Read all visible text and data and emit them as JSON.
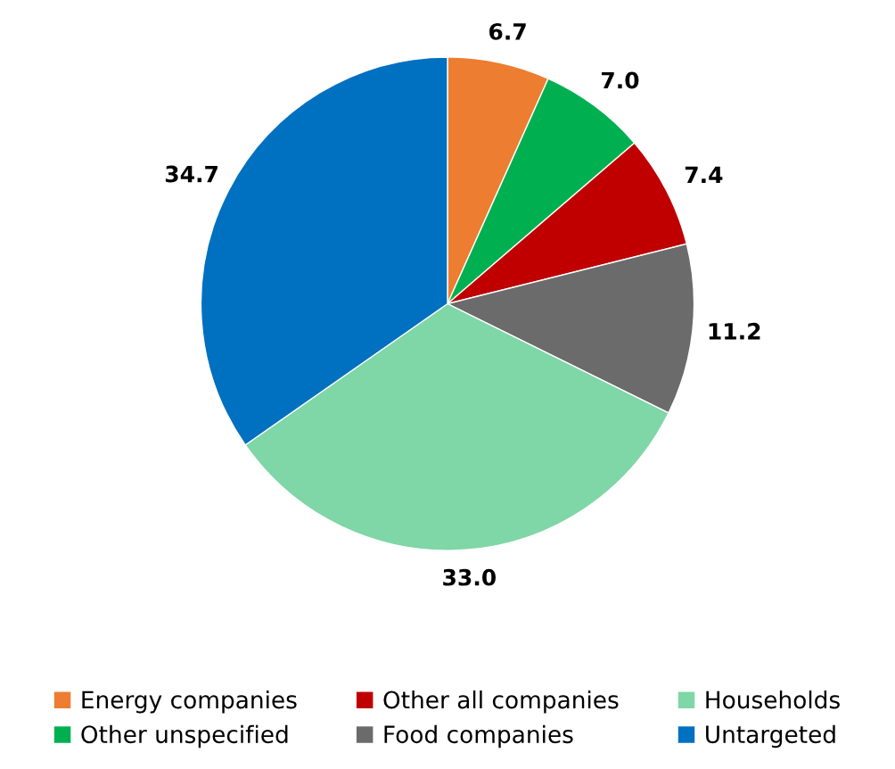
{
  "chart_data": {
    "type": "pie",
    "categories": [
      "Energy companies",
      "Other unspecified",
      "Other all companies",
      "Food companies",
      "Households",
      "Untargeted"
    ],
    "values": [
      6.7,
      7.0,
      7.4,
      11.2,
      33.0,
      34.7
    ],
    "value_labels": [
      "6.7",
      "7.0",
      "7.4",
      "11.2",
      "33.0",
      "34.7"
    ],
    "colors": [
      "#ed7d31",
      "#00b050",
      "#c00000",
      "#6b6b6b",
      "#7fd6a6",
      "#0070c0"
    ],
    "legend": "bottom"
  }
}
